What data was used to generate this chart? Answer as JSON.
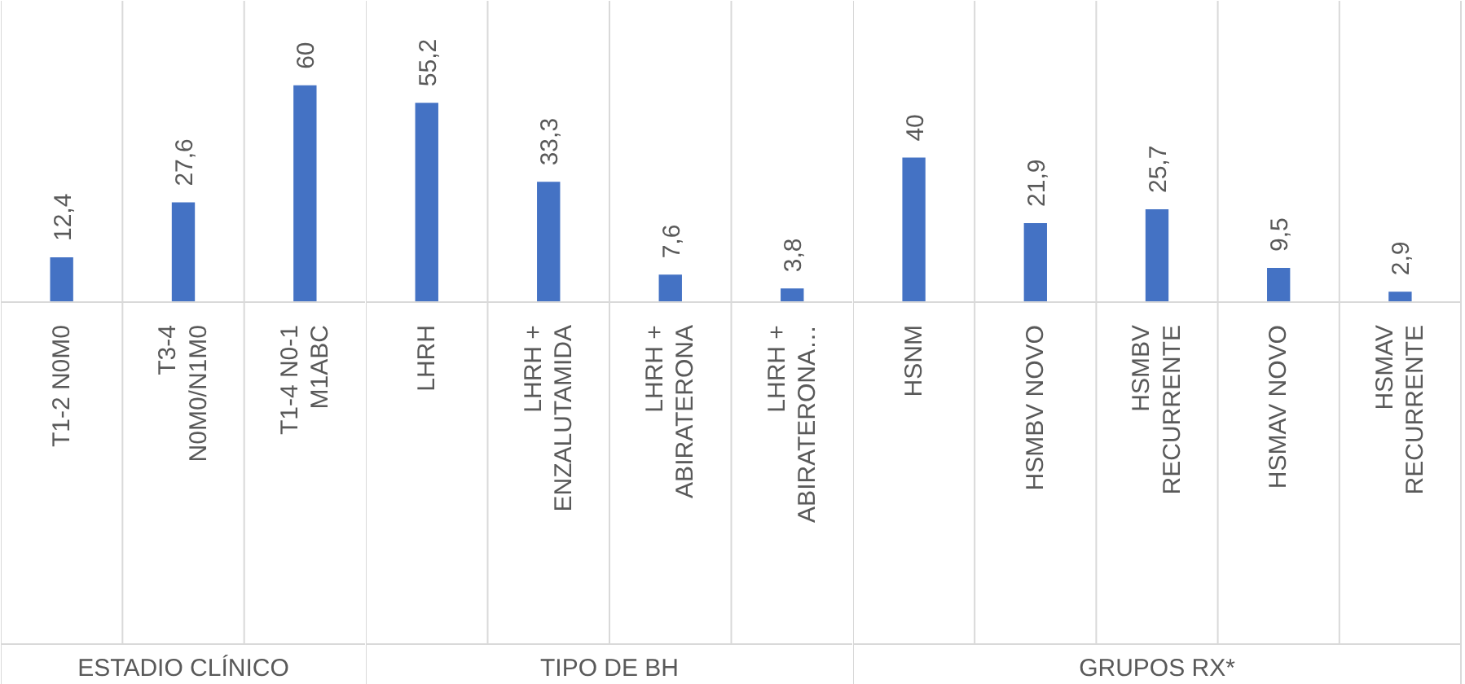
{
  "chart_data": [
    {
      "type": "bar",
      "color": "#4472c4",
      "xlabel": "ESTADIO CLÍNICO",
      "categories": [
        "T1-2 N0M0",
        "T3-4\nN0M0/N1M0",
        "T1-4 N0-1\nM1ABC"
      ],
      "values": [
        12.4,
        27.6,
        60
      ],
      "value_labels": [
        "12,4",
        "27,6",
        "60"
      ]
    },
    {
      "type": "bar",
      "color": "#4472c4",
      "xlabel": "TIPO DE BH",
      "categories": [
        "LHRH",
        "LHRH +\nENZALUTAMIDA",
        "LHRH +\nABIRATERONA",
        "LHRH +\nABIRATERONA…"
      ],
      "values": [
        55.2,
        33.3,
        7.6,
        3.8
      ],
      "value_labels": [
        "55,2",
        "33,3",
        "7,6",
        "3,8"
      ]
    },
    {
      "type": "bar",
      "color": "#4472c4",
      "xlabel": "GRUPOS RX*",
      "categories": [
        "HSNM",
        "HSMBV NOVO",
        "HSMBV\nRECURRENTE",
        "HSMAV NOVO",
        "HSMAV\nRECURRENTE"
      ],
      "values": [
        40,
        21.9,
        25.7,
        9.5,
        2.9
      ],
      "value_labels": [
        "40",
        "21,9",
        "25,7",
        "9,5",
        "2,9"
      ]
    }
  ]
}
